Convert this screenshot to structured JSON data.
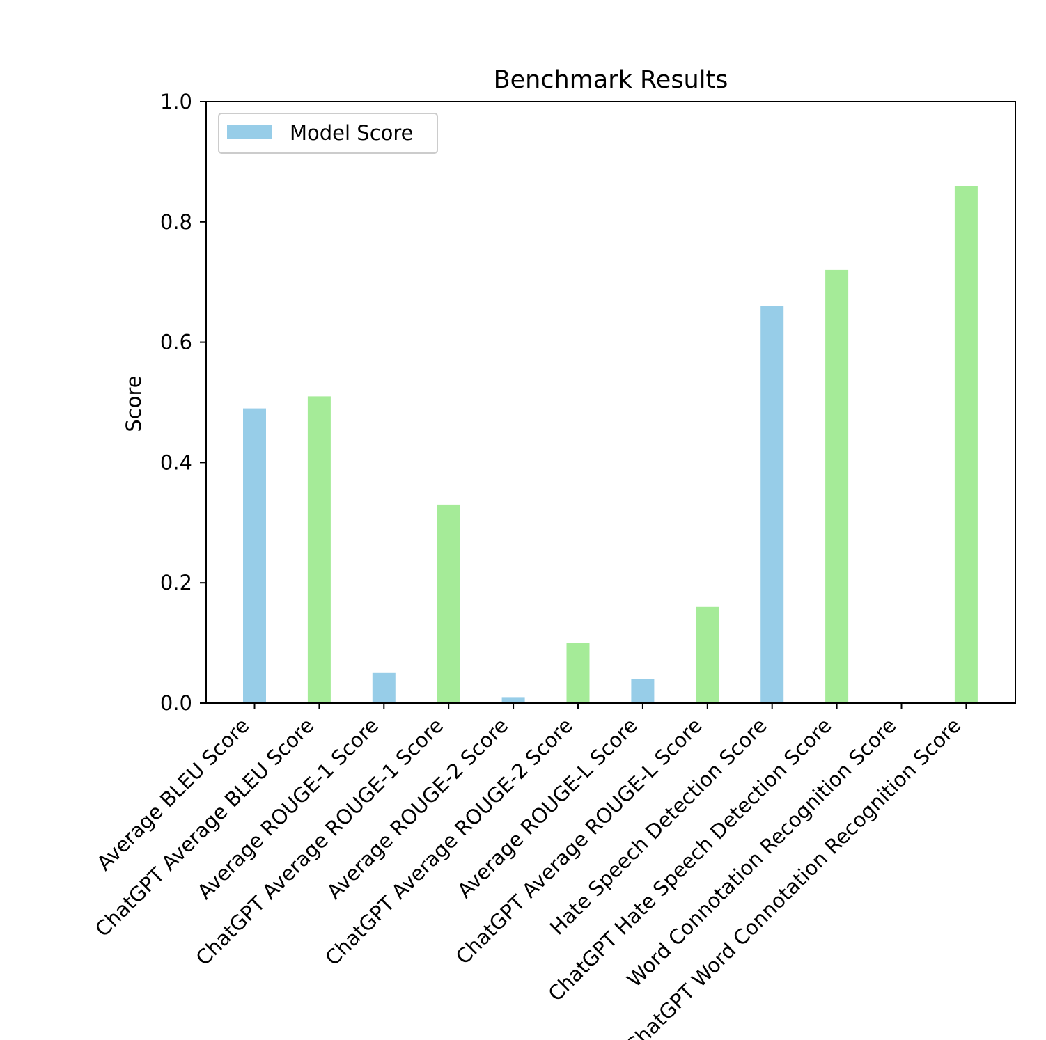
{
  "chart_data": {
    "type": "bar",
    "title": "Benchmark Results",
    "xlabel": "",
    "ylabel": "Score",
    "ylim": [
      0,
      1.0
    ],
    "yticks": [
      0.0,
      0.2,
      0.4,
      0.6,
      0.8,
      1.0
    ],
    "ytick_labels": [
      "0.0",
      "0.2",
      "0.4",
      "0.6",
      "0.8",
      "1.0"
    ],
    "grid": false,
    "legend": {
      "placement": "top-left",
      "entries": [
        {
          "label": "Model Score",
          "color": "#97cde8"
        }
      ]
    },
    "colors": {
      "model": "#97cde8",
      "chatgpt": "#a5eb98"
    },
    "categories": [
      "Average BLEU Score",
      "ChatGPT Average BLEU Score",
      "Average ROUGE-1 Score",
      "ChatGPT Average ROUGE-1 Score",
      "Average ROUGE-2 Score",
      "ChatGPT Average ROUGE-2 Score",
      "Average ROUGE-L Score",
      "ChatGPT Average ROUGE-L Score",
      "Hate Speech Detection Score",
      "ChatGPT Hate Speech Detection Score",
      "Word Connotation Recognition Score",
      "ChatGPT Word Connotation Recognition Score"
    ],
    "values": [
      0.49,
      0.51,
      0.05,
      0.33,
      0.01,
      0.1,
      0.04,
      0.16,
      0.66,
      0.72,
      0.0,
      0.86
    ],
    "bar_groups": [
      "model",
      "chatgpt",
      "model",
      "chatgpt",
      "model",
      "chatgpt",
      "model",
      "chatgpt",
      "model",
      "chatgpt",
      "model",
      "chatgpt"
    ]
  }
}
